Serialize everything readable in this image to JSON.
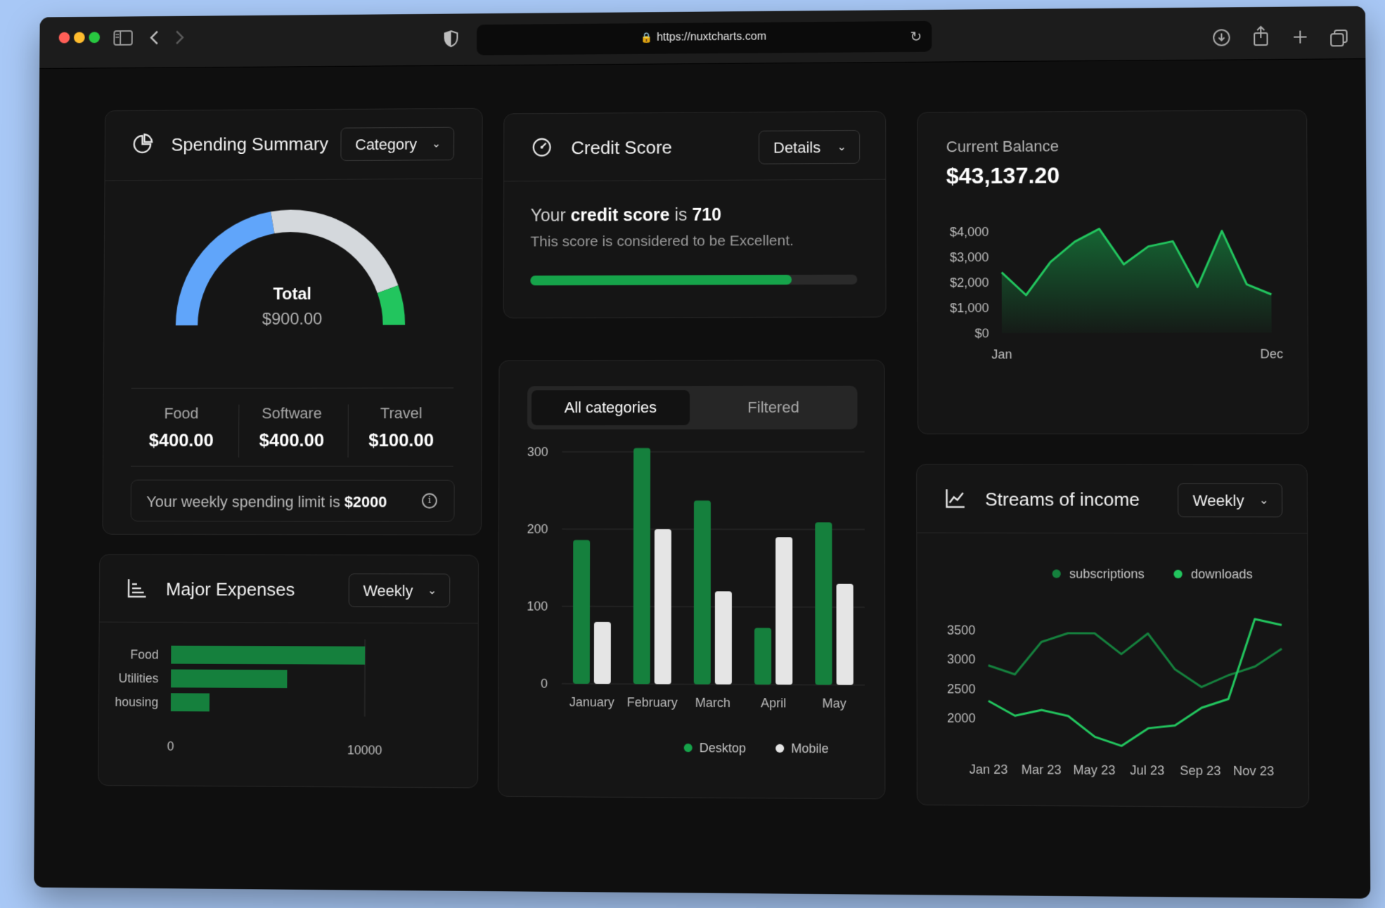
{
  "browser": {
    "url": "https://nuxtcharts.com",
    "traffic_colors": [
      "#ff5f57",
      "#febc2e",
      "#28c840"
    ]
  },
  "spending": {
    "title": "Spending Summary",
    "dropdown": "Category",
    "total_label": "Total",
    "total_value": "$900.00",
    "categories": [
      {
        "label": "Food",
        "value": "$400.00",
        "amount": 400,
        "color": "#60a5fa"
      },
      {
        "label": "Software",
        "value": "$400.00",
        "amount": 400,
        "color": "#d4d8dc"
      },
      {
        "label": "Travel",
        "value": "$100.00",
        "amount": 100,
        "color": "#22c55e"
      }
    ],
    "limit_prefix": "Your weekly spending limit is ",
    "limit_value": "$2000"
  },
  "credit": {
    "title": "Credit Score",
    "dropdown": "Details",
    "line_your": "Your ",
    "line_bold": "credit score",
    "line_is": " is ",
    "score": "710",
    "subtitle": "This score is considered to be Excellent.",
    "progress": 0.8
  },
  "balance": {
    "label": "Current Balance",
    "value": "$43,137.20"
  },
  "expenses": {
    "title": "Major Expenses",
    "dropdown": "Weekly"
  },
  "tabs": {
    "all": "All categories",
    "filtered": "Filtered"
  },
  "income": {
    "title": "Streams of income",
    "dropdown": "Weekly"
  },
  "chart_data": [
    {
      "id": "balance",
      "type": "area",
      "x_labels": [
        "Jan",
        "Dec"
      ],
      "y_ticks": [
        "$4,000",
        "$3,000",
        "$2,000",
        "$1,000",
        "$0"
      ],
      "ylim": [
        0,
        4000
      ],
      "values": [
        2400,
        1500,
        2800,
        3600,
        4100,
        2700,
        3400,
        3600,
        1800,
        4000,
        1900,
        1500
      ],
      "color": "#22c55e"
    },
    {
      "id": "major_expenses",
      "type": "bar",
      "orientation": "horizontal",
      "categories": [
        "Food",
        "Utilities",
        "housing"
      ],
      "values": [
        10000,
        6000,
        2000
      ],
      "xlim": [
        0,
        10000
      ],
      "x_ticks": [
        "0",
        "10000"
      ],
      "color": "#15803d"
    },
    {
      "id": "desktop_mobile",
      "type": "bar",
      "categories": [
        "January",
        "February",
        "March",
        "April",
        "May"
      ],
      "ylim": [
        0,
        300
      ],
      "y_ticks": [
        "300",
        "200",
        "100",
        "0"
      ],
      "series": [
        {
          "name": "Desktop",
          "values": [
            186,
            305,
            237,
            73,
            209
          ],
          "color": "#15803d"
        },
        {
          "name": "Mobile",
          "values": [
            80,
            200,
            120,
            190,
            130
          ],
          "color": "#e5e5e5"
        }
      ]
    },
    {
      "id": "streams",
      "type": "line",
      "x_labels": [
        "Jan 23",
        "Mar 23",
        "May 23",
        "Jul 23",
        "Sep 23",
        "Nov 23"
      ],
      "y_ticks": [
        "3500",
        "3000",
        "2500",
        "2000"
      ],
      "ylim": [
        1500,
        4000
      ],
      "series": [
        {
          "name": "subscriptions",
          "values": [
            2900,
            2750,
            3300,
            3450,
            3450,
            3100,
            3450,
            2850,
            2550,
            2750,
            2900,
            3200
          ],
          "color": "#15803d"
        },
        {
          "name": "downloads",
          "values": [
            2300,
            2050,
            2150,
            2050,
            1700,
            1550,
            1850,
            1900,
            2200,
            2350,
            3700,
            3600
          ],
          "color": "#22c55e"
        }
      ]
    }
  ]
}
